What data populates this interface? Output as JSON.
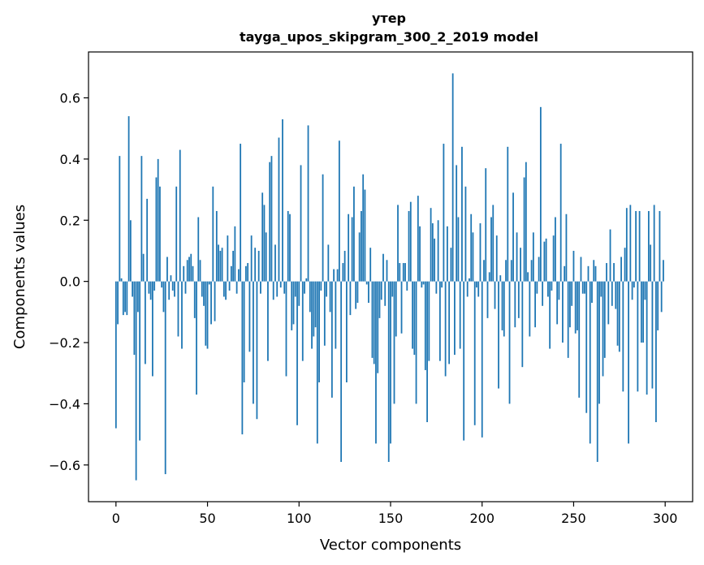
{
  "chart_data": {
    "type": "bar",
    "title": "утер",
    "subtitle": "tayga_upos_skipgram_300_2_2019 model",
    "xlabel": "Vector components",
    "ylabel": "Components values",
    "xlim": [
      -15,
      315
    ],
    "ylim": [
      -0.72,
      0.75
    ],
    "xticks": [
      0,
      50,
      100,
      150,
      200,
      250,
      300
    ],
    "yticks": [
      -0.6,
      -0.4,
      -0.2,
      0.0,
      0.2,
      0.4,
      0.6
    ],
    "ytick_labels": [
      "−0.6",
      "−0.4",
      "−0.2",
      "0.0",
      "0.2",
      "0.4",
      "0.6"
    ],
    "xtick_labels": [
      "0",
      "50",
      "100",
      "150",
      "200",
      "250",
      "300"
    ],
    "bar_color": "#1f77b4",
    "grid": false,
    "values": [
      -0.48,
      -0.14,
      0.41,
      0.01,
      -0.11,
      -0.1,
      -0.11,
      0.54,
      0.2,
      -0.05,
      -0.24,
      -0.65,
      -0.1,
      -0.52,
      0.41,
      0.09,
      -0.27,
      0.27,
      -0.04,
      -0.06,
      -0.31,
      -0.03,
      0.34,
      0.4,
      0.31,
      -0.02,
      -0.1,
      -0.63,
      0.08,
      -0.06,
      0.02,
      -0.03,
      -0.05,
      0.31,
      -0.18,
      0.43,
      -0.22,
      0.05,
      -0.04,
      0.07,
      0.08,
      0.09,
      0.05,
      -0.12,
      -0.37,
      0.21,
      0.07,
      -0.05,
      -0.08,
      -0.21,
      -0.22,
      -0.01,
      -0.14,
      0.31,
      -0.13,
      0.23,
      0.12,
      0.1,
      0.11,
      -0.05,
      -0.06,
      0.15,
      -0.03,
      0.05,
      0.1,
      0.18,
      -0.04,
      0.04,
      0.45,
      -0.5,
      -0.33,
      0.05,
      0.06,
      -0.23,
      0.15,
      -0.4,
      0.11,
      -0.45,
      0.1,
      -0.04,
      0.29,
      0.25,
      0.16,
      -0.26,
      0.39,
      0.41,
      -0.06,
      0.12,
      -0.05,
      0.47,
      -0.02,
      0.53,
      -0.04,
      -0.31,
      0.23,
      0.22,
      -0.16,
      -0.14,
      -0.05,
      -0.47,
      -0.08,
      0.38,
      -0.26,
      -0.04,
      0.01,
      0.51,
      -0.1,
      -0.22,
      -0.18,
      -0.15,
      -0.53,
      -0.33,
      -0.03,
      0.35,
      -0.21,
      -0.05,
      0.12,
      -0.1,
      -0.38,
      0.04,
      -0.22,
      0.04,
      0.46,
      -0.59,
      0.06,
      0.1,
      -0.33,
      0.22,
      -0.11,
      0.21,
      0.31,
      -0.09,
      -0.07,
      0.16,
      0.23,
      0.35,
      0.3,
      -0.01,
      -0.07,
      0.11,
      -0.25,
      -0.27,
      -0.53,
      -0.3,
      -0.12,
      -0.06,
      0.09,
      -0.08,
      0.07,
      -0.59,
      -0.53,
      -0.05,
      -0.4,
      -0.18,
      0.25,
      0.06,
      -0.17,
      0.06,
      0.06,
      -0.03,
      0.23,
      0.26,
      -0.22,
      -0.24,
      -0.4,
      0.28,
      0.18,
      -0.02,
      -0.01,
      -0.29,
      -0.46,
      -0.26,
      0.24,
      0.19,
      0.14,
      -0.04,
      0.2,
      -0.26,
      -0.02,
      0.45,
      -0.31,
      0.18,
      -0.27,
      0.11,
      0.68,
      -0.24,
      0.38,
      0.21,
      -0.22,
      0.44,
      -0.52,
      0.31,
      -0.05,
      0.01,
      0.22,
      0.16,
      -0.47,
      -0.02,
      -0.05,
      0.19,
      -0.51,
      0.07,
      0.37,
      -0.12,
      0.03,
      0.21,
      0.25,
      -0.09,
      0.15,
      -0.35,
      0.02,
      -0.16,
      -0.18,
      0.07,
      0.44,
      -0.4,
      0.07,
      0.29,
      -0.15,
      0.16,
      -0.12,
      0.11,
      -0.28,
      0.34,
      0.39,
      0.03,
      -0.18,
      0.07,
      0.16,
      -0.15,
      -0.04,
      0.08,
      0.57,
      -0.08,
      0.13,
      0.14,
      -0.05,
      -0.22,
      -0.03,
      0.15,
      0.21,
      -0.14,
      -0.06,
      0.45,
      -0.2,
      0.05,
      0.22,
      -0.25,
      -0.15,
      -0.08,
      0.1,
      -0.17,
      -0.16,
      -0.38,
      0.08,
      -0.04,
      -0.04,
      -0.43,
      0.05,
      -0.53,
      -0.07,
      0.07,
      0.05,
      -0.59,
      -0.4,
      -0.05,
      -0.31,
      -0.25,
      0.06,
      -0.14,
      0.17,
      -0.08,
      0.06,
      -0.09,
      -0.21,
      -0.23,
      0.08,
      -0.36,
      0.11,
      0.24,
      -0.53,
      0.25,
      -0.06,
      -0.02,
      0.23,
      -0.36,
      0.23,
      -0.2,
      -0.2,
      -0.06,
      -0.37,
      0.23,
      0.12,
      -0.35,
      0.25,
      -0.46,
      -0.16,
      0.23,
      -0.1,
      0.07
    ]
  }
}
